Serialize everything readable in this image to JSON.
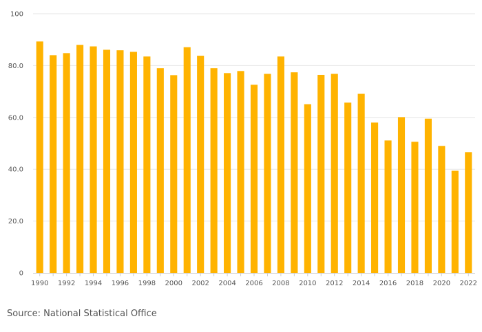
{
  "chart_data": {
    "type": "bar",
    "categories": [
      "1990",
      "1991",
      "1992",
      "1993",
      "1994",
      "1995",
      "1996",
      "1997",
      "1998",
      "1999",
      "2000",
      "2001",
      "2002",
      "2003",
      "2004",
      "2005",
      "2006",
      "2007",
      "2008",
      "2009",
      "2010",
      "2011",
      "2012",
      "2013",
      "2014",
      "2015",
      "2016",
      "2017",
      "2018",
      "2019",
      "2020",
      "2021",
      "2022"
    ],
    "x_tick_labels": [
      "1990",
      "1992",
      "1994",
      "1996",
      "1998",
      "2000",
      "2002",
      "2004",
      "2006",
      "2008",
      "2010",
      "2012",
      "2014",
      "2016",
      "2018",
      "2020",
      "2022"
    ],
    "values": [
      89.3,
      84.0,
      84.8,
      88.0,
      87.4,
      86.1,
      85.9,
      85.3,
      83.5,
      79.0,
      76.3,
      87.1,
      83.8,
      79.0,
      77.1,
      77.9,
      72.6,
      76.8,
      83.5,
      77.4,
      65.1,
      76.4,
      76.8,
      65.7,
      69.1,
      58.0,
      51.1,
      60.1,
      50.6,
      59.5,
      49.0,
      39.4,
      46.6
    ],
    "ylim": [
      0,
      100
    ],
    "y_tick_labels": [
      "0",
      "20.0",
      "40.0",
      "60.0",
      "80.0",
      "100"
    ],
    "y_tick_values": [
      0,
      20,
      40,
      60,
      80,
      100
    ],
    "grid": true,
    "bar_color": "#FFB300",
    "title": "",
    "xlabel": "",
    "ylabel": ""
  },
  "footer": {
    "source": "Source: National Statistical Office"
  }
}
